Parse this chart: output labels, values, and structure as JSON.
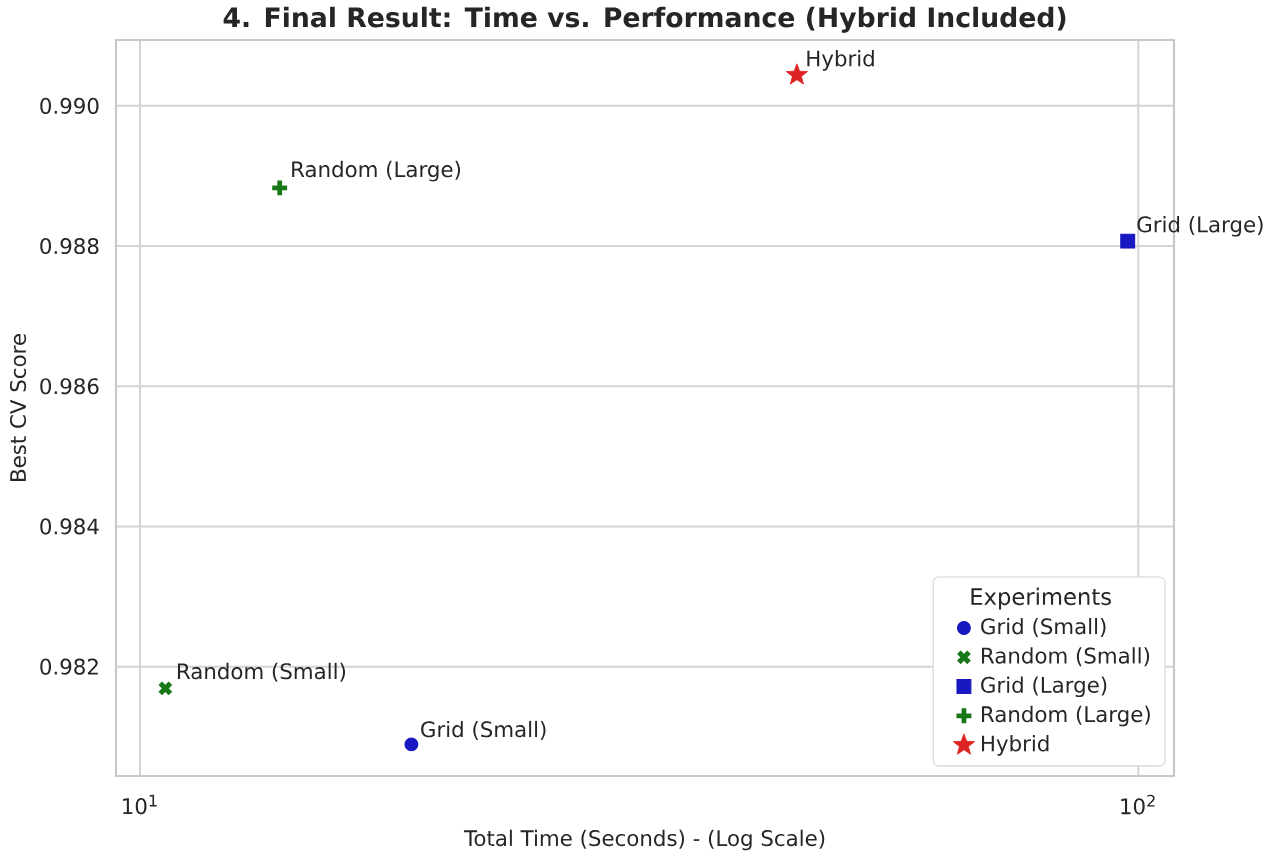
{
  "chart_data": {
    "type": "scatter",
    "title": "4. Final Result: Time vs. Performance (Hybrid Included)",
    "xlabel": "Total Time (Seconds) - (Log Scale)",
    "ylabel": "Best CV Score",
    "legend_title": "Experiments",
    "series": [
      {
        "name": "Grid (Small)",
        "color": "#1818c0",
        "marker": "circle",
        "x": [
          18.7
        ],
        "values": [
          0.98089
        ]
      },
      {
        "name": "Random (Small)",
        "color": "#187818",
        "marker": "cross",
        "x": [
          10.6
        ],
        "values": [
          0.98169
        ]
      },
      {
        "name": "Grid (Large)",
        "color": "#1818c0",
        "marker": "square",
        "x": [
          97.6
        ],
        "values": [
          0.98807
        ]
      },
      {
        "name": "Random (Large)",
        "color": "#187818",
        "marker": "plus",
        "x": [
          13.8
        ],
        "values": [
          0.98883
        ]
      },
      {
        "name": "Hybrid",
        "color": "#dd2222",
        "marker": "star",
        "x": [
          45.5
        ],
        "values": [
          0.99044
        ]
      }
    ],
    "xlim": [
      9.46,
      108.6
    ],
    "ylim": [
      0.98044,
      0.99094
    ],
    "xticks": [
      {
        "value": 10,
        "label": "10$^{1}$"
      },
      {
        "value": 100,
        "label": "10$^{2}$"
      }
    ],
    "yticks": [
      0.982,
      0.984,
      0.986,
      0.988,
      {
        "value": 0.99,
        "label": "0.990"
      }
    ],
    "log": "x",
    "grid": true,
    "legend": "bottom right"
  }
}
